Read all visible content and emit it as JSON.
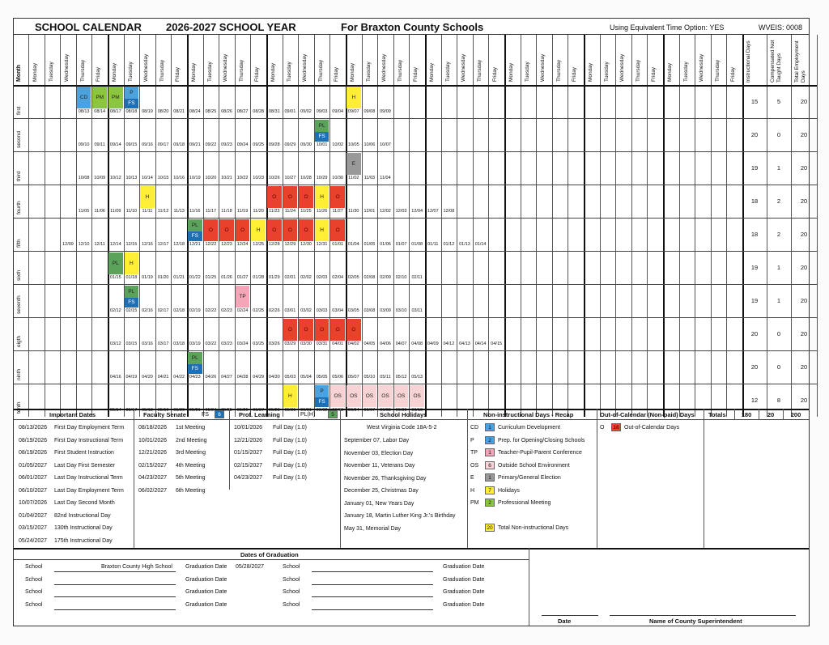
{
  "header": {
    "title": "SCHOOL CALENDAR",
    "year": "2026-2027 SCHOOL YEAR",
    "county": "For Braxton County Schools",
    "eto": "Using Equivalent Time Option: YES",
    "wveis": "WVEIS: 0008"
  },
  "grid": {
    "month_header": "Month",
    "weekdays": [
      "Monday",
      "Tuesday",
      "Wednesday",
      "Thursday",
      "Friday"
    ],
    "total_headers": [
      "Instructional Days",
      "Compensated Not Taught Days",
      "Total Employment Days"
    ],
    "colors": {
      "CD": "#4aa3df",
      "P": "#4aa3df",
      "FS": "#1f6fb5",
      "PM": "#8cc63f",
      "PL": "#5ba35b",
      "H": "#ffee33",
      "O": "#e8412c",
      "E": "#999999",
      "TP": "#f4a6b8",
      "OS": "#f7d3d5"
    },
    "months": [
      {
        "name": "first",
        "start": 3,
        "dates": [
          "08/13",
          "08/14",
          "08/17",
          "08/18",
          "08/19",
          "08/20",
          "08/21",
          "08/24",
          "08/25",
          "08/26",
          "08/27",
          "08/28",
          "08/31",
          "09/01",
          "09/02",
          "09/03",
          "09/04",
          "09/07",
          "09/08",
          "09/09"
        ],
        "marks": [
          [
            0,
            "CD"
          ],
          [
            1,
            "PM"
          ],
          [
            2,
            "PM"
          ],
          [
            3,
            "P",
            "FS"
          ],
          [
            17,
            "H"
          ]
        ],
        "totals": [
          "15",
          "5",
          "20"
        ]
      },
      {
        "name": "second",
        "start": 3,
        "dates": [
          "09/10",
          "09/11",
          "09/14",
          "09/15",
          "09/16",
          "09/17",
          "09/18",
          "09/21",
          "09/22",
          "09/23",
          "09/24",
          "09/25",
          "09/28",
          "09/29",
          "09/30",
          "10/01",
          "10/02",
          "10/05",
          "10/06",
          "10/07"
        ],
        "marks": [
          [
            15,
            "PL",
            "FS"
          ]
        ],
        "totals": [
          "20",
          "0",
          "20"
        ]
      },
      {
        "name": "third",
        "start": 3,
        "dates": [
          "10/08",
          "10/09",
          "10/12",
          "10/13",
          "10/14",
          "10/15",
          "10/16",
          "10/19",
          "10/20",
          "10/21",
          "10/22",
          "10/23",
          "10/26",
          "10/27",
          "10/28",
          "10/29",
          "10/30",
          "11/02",
          "11/03",
          "11/04"
        ],
        "marks": [
          [
            17,
            "E"
          ]
        ],
        "totals": [
          "19",
          "1",
          "20"
        ]
      },
      {
        "name": "fourth",
        "start": 3,
        "dates": [
          "11/05",
          "11/06",
          "11/09",
          "11/10",
          "11/11",
          "11/12",
          "11/13",
          "11/16",
          "11/17",
          "11/18",
          "11/19",
          "11/20",
          "11/23",
          "11/24",
          "11/25",
          "11/26",
          "11/27",
          "11/30",
          "12/01",
          "12/02",
          "12/03",
          "12/04",
          "12/07",
          "12/08"
        ],
        "marks": [
          [
            4,
            "H"
          ],
          [
            12,
            "O"
          ],
          [
            13,
            "O"
          ],
          [
            14,
            "O"
          ],
          [
            15,
            "H"
          ],
          [
            16,
            "O"
          ]
        ],
        "totals": [
          "18",
          "2",
          "20"
        ]
      },
      {
        "name": "fifth",
        "start": 2,
        "dates": [
          "12/09",
          "12/10",
          "12/11",
          "12/14",
          "12/15",
          "12/16",
          "12/17",
          "12/18",
          "12/21",
          "12/22",
          "12/23",
          "12/24",
          "12/25",
          "12/28",
          "12/29",
          "12/30",
          "12/31",
          "01/01",
          "01/04",
          "01/05",
          "01/06",
          "01/07",
          "01/08",
          "01/11",
          "01/12",
          "01/13",
          "01/14"
        ],
        "marks": [
          [
            8,
            "PL",
            "FS"
          ],
          [
            9,
            "O"
          ],
          [
            10,
            "O"
          ],
          [
            11,
            "O"
          ],
          [
            12,
            "H"
          ],
          [
            13,
            "O"
          ],
          [
            14,
            "O"
          ],
          [
            15,
            "O"
          ],
          [
            16,
            "H"
          ],
          [
            17,
            "O"
          ]
        ],
        "totals": [
          "18",
          "2",
          "20"
        ]
      },
      {
        "name": "sixth",
        "start": 5,
        "dates": [
          "01/15",
          "01/18",
          "01/19",
          "01/20",
          "01/21",
          "01/22",
          "01/25",
          "01/26",
          "01/27",
          "01/28",
          "01/29",
          "02/01",
          "02/02",
          "02/03",
          "02/04",
          "02/05",
          "02/08",
          "02/09",
          "02/10",
          "02/11"
        ],
        "marks": [
          [
            0,
            "PL"
          ],
          [
            1,
            "H"
          ]
        ],
        "totals": [
          "19",
          "1",
          "20"
        ]
      },
      {
        "name": "seventh",
        "start": 5,
        "dates": [
          "02/12",
          "02/15",
          "02/16",
          "02/17",
          "02/18",
          "02/19",
          "02/22",
          "02/23",
          "02/24",
          "02/25",
          "02/26",
          "03/01",
          "03/02",
          "03/03",
          "03/04",
          "03/05",
          "03/08",
          "03/09",
          "03/10",
          "03/11"
        ],
        "marks": [
          [
            1,
            "PL",
            "FS"
          ],
          [
            8,
            "TP"
          ]
        ],
        "totals": [
          "19",
          "1",
          "20"
        ]
      },
      {
        "name": "eigth",
        "start": 5,
        "dates": [
          "03/12",
          "03/15",
          "03/16",
          "03/17",
          "03/18",
          "03/19",
          "03/22",
          "03/23",
          "03/24",
          "03/25",
          "03/26",
          "03/29",
          "03/30",
          "03/31",
          "04/01",
          "04/02",
          "04/05",
          "04/06",
          "04/07",
          "04/08",
          "04/09",
          "04/12",
          "04/13",
          "04/14",
          "04/15"
        ],
        "marks": [
          [
            11,
            "O"
          ],
          [
            12,
            "O"
          ],
          [
            13,
            "O"
          ],
          [
            14,
            "O"
          ],
          [
            15,
            "O"
          ]
        ],
        "totals": [
          "20",
          "0",
          "20"
        ]
      },
      {
        "name": "ninth",
        "start": 5,
        "dates": [
          "04/16",
          "04/19",
          "04/20",
          "04/21",
          "04/22",
          "04/23",
          "04/26",
          "04/27",
          "04/28",
          "04/29",
          "04/30",
          "05/03",
          "05/04",
          "05/05",
          "05/06",
          "05/07",
          "05/10",
          "05/11",
          "05/12",
          "05/13"
        ],
        "marks": [
          [
            5,
            "PL",
            "FS"
          ]
        ],
        "totals": [
          "20",
          "0",
          "20"
        ]
      },
      {
        "name": "tenth",
        "start": 5,
        "dates": [
          "05/14",
          "05/17",
          "05/18",
          "05/19",
          "05/20",
          "05/21",
          "05/24",
          "05/25",
          "05/26",
          "05/27",
          "05/28",
          "05/31",
          "06/01",
          "06/02",
          "06/03",
          "06/04",
          "06/07",
          "06/08",
          "06/09",
          "06/10"
        ],
        "marks": [
          [
            11,
            "H"
          ],
          [
            13,
            "P",
            "FS"
          ],
          [
            14,
            "OS"
          ],
          [
            15,
            "OS"
          ],
          [
            16,
            "OS"
          ],
          [
            17,
            "OS"
          ],
          [
            18,
            "OS"
          ],
          [
            19,
            "OS"
          ]
        ],
        "totals": [
          "12",
          "8",
          "20"
        ]
      }
    ]
  },
  "important_dates": {
    "header": "Important Dates",
    "items": [
      [
        "08/13/2026",
        "First Day Employment Term"
      ],
      [
        "08/19/2026",
        "First Day Instructional Term"
      ],
      [
        "08/19/2026",
        "First Student Instruction"
      ],
      [
        "01/05/2027",
        "Last Day First Semester"
      ],
      [
        "06/01/2027",
        "Last Day Instructional Term"
      ],
      [
        "06/10/2027",
        "Last Day Employment Term"
      ],
      [
        "10/07/2026",
        "Last Day Second Month"
      ],
      [
        "01/04/2027",
        "82nd Instructional Day"
      ],
      [
        "03/15/2027",
        "130th Instructional Day"
      ],
      [
        "05/24/2027",
        "175th Instructional Day"
      ]
    ]
  },
  "faculty_senate": {
    "header": "Faculty Senate",
    "code": "FS",
    "count": "6",
    "items": [
      [
        "08/18/2026",
        "1st Meeting"
      ],
      [
        "10/01/2026",
        "2nd Meeting"
      ],
      [
        "12/21/2026",
        "3rd Meeting"
      ],
      [
        "02/15/2027",
        "4th Meeting"
      ],
      [
        "04/23/2027",
        "5th Meeting"
      ],
      [
        "06/02/2027",
        "6th Meeting"
      ]
    ]
  },
  "prof_learning": {
    "header": "Prof. Learning",
    "code": "PL(H)",
    "count": "5",
    "items": [
      [
        "10/01/2026",
        "Full Day (1.0)"
      ],
      [
        "12/21/2026",
        "Full Day (1.0)"
      ],
      [
        "01/15/2027",
        "Full Day (1.0)"
      ],
      [
        "02/15/2027",
        "Full Day (1.0)"
      ],
      [
        "04/23/2027",
        "Full Day (1.0)"
      ]
    ]
  },
  "holidays": {
    "header": "School Holidays",
    "code": "West Virginia Code 18A-5-2",
    "items": [
      "September 07, Labor Day",
      "November 03, Election Day",
      "November 11, Veterans Day",
      "November 26, Thanksgiving Day",
      "December 25, Christmas Day",
      "January 01, New Years Day",
      "January 18, Martin Luther King Jr.'s Birthday",
      "May 31, Memorial Day"
    ]
  },
  "recap": {
    "header": "Non-instructional Days - Recap",
    "items": [
      [
        "CD",
        "1",
        "Curriculum Development",
        "#4aa3df"
      ],
      [
        "P",
        "2",
        "Prep. for Opening/Closing Schools",
        "#4aa3df"
      ],
      [
        "TP",
        "1",
        "Teacher-Pupil-Parent Conference",
        "#f4a6b8"
      ],
      [
        "OS",
        "6",
        "Outside School Environment",
        "#f7d3d5"
      ],
      [
        "E",
        "1",
        "Primary/General Election",
        "#999999"
      ],
      [
        "H",
        "7",
        "Holidays",
        "#ffee33"
      ],
      [
        "PM",
        "2",
        "Professional Meeting",
        "#8cc63f"
      ]
    ],
    "total_count": "20",
    "total_label": "Total Non-instructional Days"
  },
  "out_of_calendar": {
    "header": "Out-of-Calendar (Non-paid) Days",
    "code": "O",
    "count": "16",
    "label": "Out-of-Calendar Days"
  },
  "totals": {
    "label": "Totals",
    "values": [
      "180",
      "20",
      "200"
    ]
  },
  "graduation": {
    "header": "Dates of Graduation",
    "school_label": "School",
    "grad_label": "Graduation Date",
    "first_school": "Braxton County High School",
    "first_date": "05/28/2027",
    "date_label": "Date",
    "superintendent_label": "Name of County Superintendent"
  }
}
